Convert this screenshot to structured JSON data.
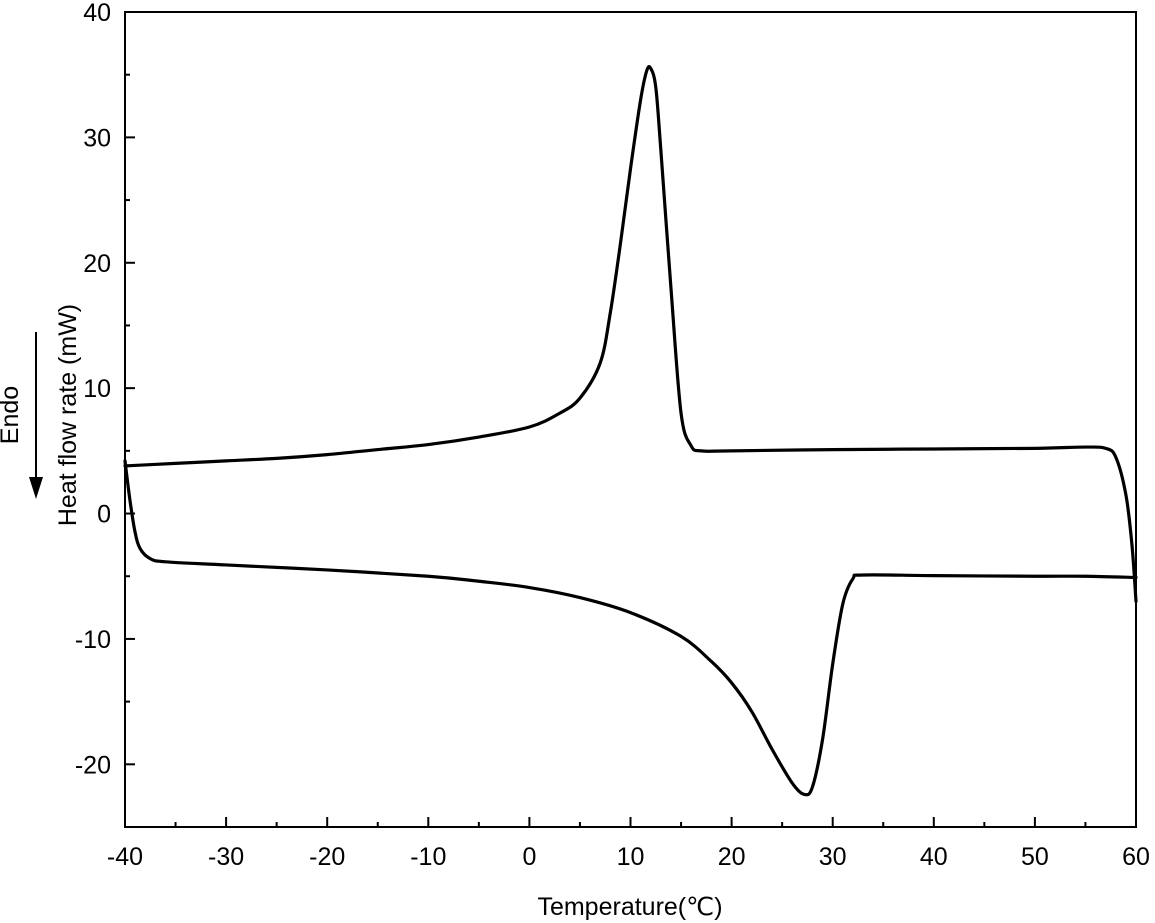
{
  "chart_data": {
    "type": "line",
    "xlabel": "Temperature(℃)",
    "ylabel": "Heat flow rate (mW)",
    "annotation": "Endo",
    "xlim": [
      -40,
      60
    ],
    "ylim": [
      -25,
      40
    ],
    "x_ticks": [
      -40,
      -30,
      -20,
      -10,
      0,
      10,
      20,
      30,
      40,
      50,
      60
    ],
    "y_ticks": [
      -20,
      -10,
      0,
      10,
      20,
      30,
      40
    ],
    "grid": false,
    "series": [
      {
        "points": [
          [
            -40,
            3.8
          ],
          [
            -35,
            4.0
          ],
          [
            -30,
            4.2
          ],
          [
            -25,
            4.4
          ],
          [
            -20,
            4.7
          ],
          [
            -15,
            5.1
          ],
          [
            -10,
            5.5
          ],
          [
            -5,
            6.1
          ],
          [
            0,
            6.9
          ],
          [
            3,
            8.0
          ],
          [
            5,
            9.2
          ],
          [
            7,
            12.0
          ],
          [
            8,
            16.0
          ],
          [
            9,
            21.5
          ],
          [
            10,
            27.5
          ],
          [
            11,
            33.0
          ],
          [
            11.6,
            35.3
          ],
          [
            12,
            35.5
          ],
          [
            12.5,
            34.0
          ],
          [
            13,
            29.0
          ],
          [
            14,
            18.0
          ],
          [
            15,
            8.0
          ],
          [
            16,
            5.4
          ],
          [
            17,
            5.0
          ],
          [
            20,
            5.0
          ],
          [
            30,
            5.1
          ],
          [
            40,
            5.15
          ],
          [
            50,
            5.2
          ],
          [
            55,
            5.3
          ],
          [
            57,
            5.2
          ],
          [
            58,
            4.5
          ],
          [
            59,
            1.5
          ],
          [
            59.6,
            -2.5
          ],
          [
            60,
            -7.0
          ]
        ]
      },
      {
        "points": [
          [
            -40,
            4.2
          ],
          [
            -39.5,
            1.0
          ],
          [
            -39,
            -1.5
          ],
          [
            -38.5,
            -2.8
          ],
          [
            -37.5,
            -3.6
          ],
          [
            -36,
            -3.85
          ],
          [
            -30,
            -4.1
          ],
          [
            -20,
            -4.5
          ],
          [
            -10,
            -5.0
          ],
          [
            -5,
            -5.4
          ],
          [
            0,
            -5.9
          ],
          [
            5,
            -6.7
          ],
          [
            10,
            -7.9
          ],
          [
            15,
            -9.8
          ],
          [
            18,
            -11.8
          ],
          [
            20,
            -13.5
          ],
          [
            22,
            -15.8
          ],
          [
            24,
            -18.8
          ],
          [
            26,
            -21.5
          ],
          [
            27.2,
            -22.4
          ],
          [
            28,
            -21.8
          ],
          [
            29,
            -18.0
          ],
          [
            30,
            -12.0
          ],
          [
            31,
            -7.2
          ],
          [
            32,
            -5.2
          ],
          [
            33,
            -4.9
          ],
          [
            40,
            -4.95
          ],
          [
            50,
            -5.0
          ],
          [
            55,
            -5.0
          ],
          [
            60,
            -5.1
          ]
        ]
      }
    ]
  }
}
